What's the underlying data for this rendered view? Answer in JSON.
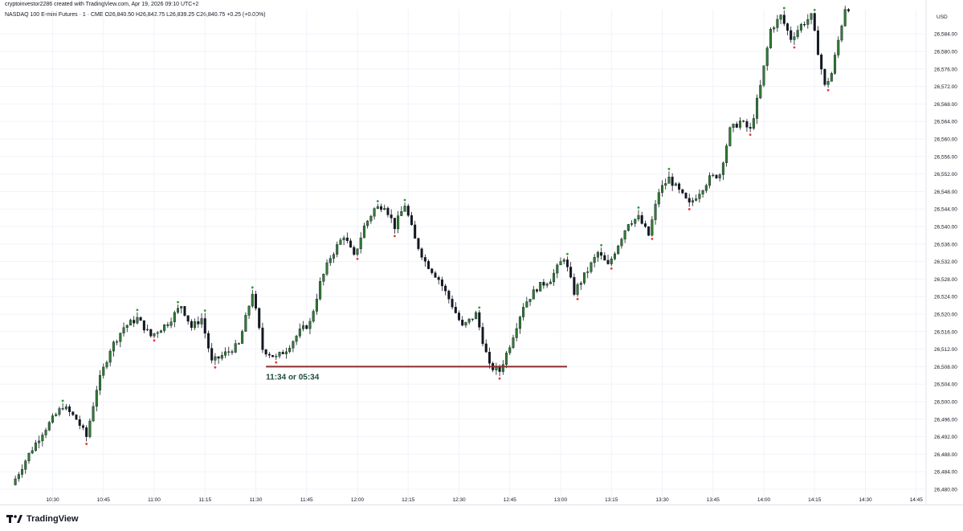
{
  "header": {
    "attribution": "cryptoinvestor2286 created with TradingView.com, Apr 19, 2026 09:10 UTC+2",
    "legend": "NASDAQ 100 E-mini Futures · 1 · CME  O26,840.50  H26,842.75  L26,839.25  C26,840.75  +0.25 (+0.00%)"
  },
  "colors": {
    "up": "#2e7d32",
    "down": "#131722",
    "support_line": "#8b2e2e",
    "marker_high": "#2e9b3a",
    "marker_low": "#e53935",
    "annotation": "#1e4d3a"
  },
  "chart_data": {
    "type": "candlestick",
    "symbol": "NASDAQ 100 E-mini Futures",
    "interval": "1",
    "exchange": "CME",
    "currency": "USD",
    "grid": true,
    "x_ticks": [
      "10:30",
      "10:45",
      "11:00",
      "11:15",
      "11:30",
      "11:45",
      "12:00",
      "12:15",
      "12:30",
      "12:45",
      "13:00",
      "13:15",
      "13:30",
      "13:45",
      "14:00",
      "14:15",
      "14:30",
      "14:45"
    ],
    "y_ticks": [
      "26,480.00",
      "26,484.00",
      "26,488.00",
      "26,492.00",
      "26,496.00",
      "26,500.00",
      "26,504.00",
      "26,508.00",
      "26,512.00",
      "26,516.00",
      "26,520.00",
      "26,524.00",
      "26,528.00",
      "26,532.00",
      "26,536.00",
      "26,540.00",
      "26,544.00",
      "26,548.00",
      "26,552.00",
      "26,556.00",
      "26,560.00",
      "26,564.00",
      "26,568.00",
      "26,572.00",
      "26,576.00",
      "26,580.00",
      "26,584.00"
    ],
    "ylim": [
      26478.2,
      26589.6
    ],
    "start_time": "10:19",
    "end_time": "14:25",
    "price_path": [
      [
        "10:19",
        26481
      ],
      [
        "10:24",
        26488
      ],
      [
        "10:28",
        26493
      ],
      [
        "10:34",
        26499
      ],
      [
        "10:38",
        26496
      ],
      [
        "10:41",
        26492
      ],
      [
        "10:44",
        26503
      ],
      [
        "10:48",
        26512
      ],
      [
        "10:52",
        26517
      ],
      [
        "10:56",
        26519
      ],
      [
        "11:00",
        26515
      ],
      [
        "11:05",
        26518
      ],
      [
        "11:09",
        26522
      ],
      [
        "11:12",
        26517
      ],
      [
        "11:15",
        26519
      ],
      [
        "11:18",
        26509
      ],
      [
        "11:22",
        26511
      ],
      [
        "11:26",
        26513
      ],
      [
        "11:30",
        26525
      ],
      [
        "11:33",
        26512
      ],
      [
        "11:37",
        26510
      ],
      [
        "11:40",
        26512
      ],
      [
        "11:44",
        26516
      ],
      [
        "11:47",
        26518
      ],
      [
        "11:50",
        26527
      ],
      [
        "11:53",
        26533
      ],
      [
        "11:57",
        26538
      ],
      [
        "12:00",
        26533
      ],
      [
        "12:03",
        26540
      ],
      [
        "12:06",
        26544
      ],
      [
        "12:09",
        26545
      ],
      [
        "12:12",
        26540
      ],
      [
        "12:15",
        26545
      ],
      [
        "12:18",
        26537
      ],
      [
        "12:21",
        26532
      ],
      [
        "12:25",
        26528
      ],
      [
        "12:29",
        26522
      ],
      [
        "12:32",
        26517
      ],
      [
        "12:36",
        26520
      ],
      [
        "12:40",
        26508
      ],
      [
        "12:43",
        26507
      ],
      [
        "12:46",
        26513
      ],
      [
        "12:50",
        26522
      ],
      [
        "12:54",
        26526
      ],
      [
        "12:58",
        26528
      ],
      [
        "13:02",
        26533
      ],
      [
        "13:05",
        26525
      ],
      [
        "13:09",
        26530
      ],
      [
        "13:12",
        26534
      ],
      [
        "13:15",
        26531
      ],
      [
        "13:18",
        26536
      ],
      [
        "13:21",
        26541
      ],
      [
        "13:24",
        26542
      ],
      [
        "13:27",
        26538
      ],
      [
        "13:30",
        26548
      ],
      [
        "13:33",
        26551
      ],
      [
        "13:36",
        26548
      ],
      [
        "13:39",
        26545
      ],
      [
        "13:42",
        26548
      ],
      [
        "13:45",
        26551
      ],
      [
        "13:48",
        26552
      ],
      [
        "13:51",
        26562
      ],
      [
        "13:54",
        26564
      ],
      [
        "13:57",
        26562
      ],
      [
        "14:00",
        26572
      ],
      [
        "14:03",
        26585
      ],
      [
        "14:06",
        26588
      ],
      [
        "14:09",
        26583
      ],
      [
        "14:12",
        26586
      ],
      [
        "14:15",
        26588
      ],
      [
        "14:19",
        26572
      ],
      [
        "14:21",
        26575
      ],
      [
        "14:25",
        26590
      ]
    ],
    "support_level": 26508,
    "support_from": "11:33",
    "support_to": "13:00",
    "annotation": "11:34 or 05:34"
  }
}
